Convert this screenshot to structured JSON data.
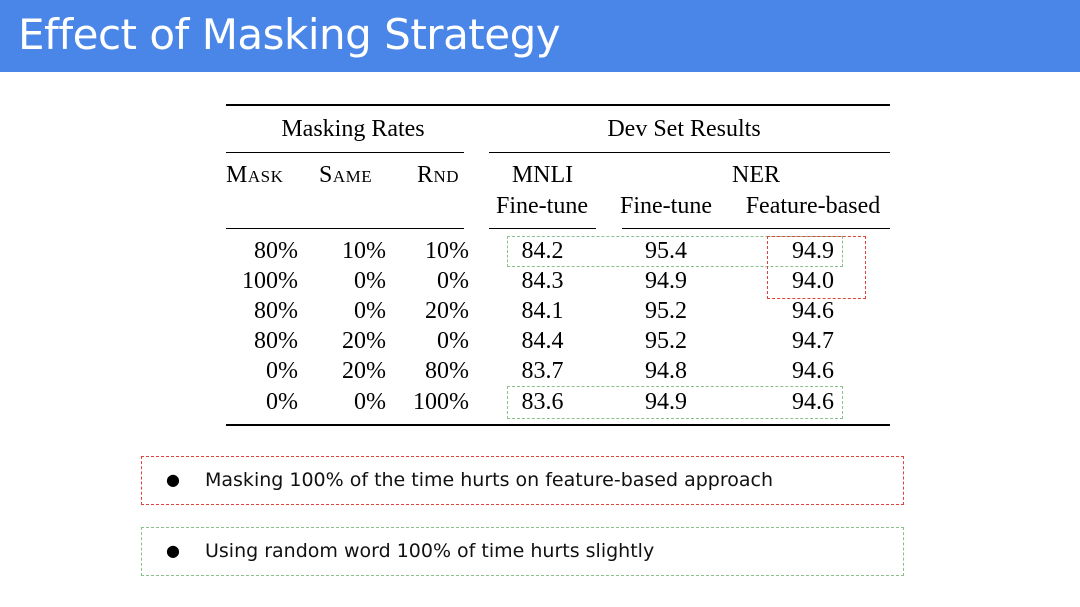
{
  "slide": {
    "title": "Effect of Masking Strategy"
  },
  "table": {
    "group_headers": {
      "masking_rates": "Masking Rates",
      "dev_set_results": "Dev Set Results"
    },
    "col_headers": {
      "mask": "Mask",
      "same": "Same",
      "rnd": "Rnd",
      "mnli": "MNLI",
      "mnli_sub": "Fine-tune",
      "ner": "NER",
      "ner_finetune": "Fine-tune",
      "ner_feature": "Feature-based"
    },
    "rows": [
      [
        "80%",
        "10%",
        "10%",
        "84.2",
        "95.4",
        "94.9"
      ],
      [
        "100%",
        "0%",
        "0%",
        "84.3",
        "94.9",
        "94.0"
      ],
      [
        "80%",
        "0%",
        "20%",
        "84.1",
        "95.2",
        "94.6"
      ],
      [
        "80%",
        "20%",
        "0%",
        "84.4",
        "95.2",
        "94.7"
      ],
      [
        "0%",
        "20%",
        "80%",
        "83.7",
        "94.8",
        "94.6"
      ],
      [
        "0%",
        "0%",
        "100%",
        "83.6",
        "94.9",
        "94.6"
      ]
    ]
  },
  "notes": [
    {
      "text": "Masking 100% of the time hurts on feature-based approach",
      "highlight": "red"
    },
    {
      "text": "Using random word 100% of time hurts slightly",
      "highlight": "green"
    }
  ],
  "colors": {
    "title_bar": "#4a86e8",
    "red_highlight": "#e0433a",
    "green_highlight": "#8cc08c"
  }
}
